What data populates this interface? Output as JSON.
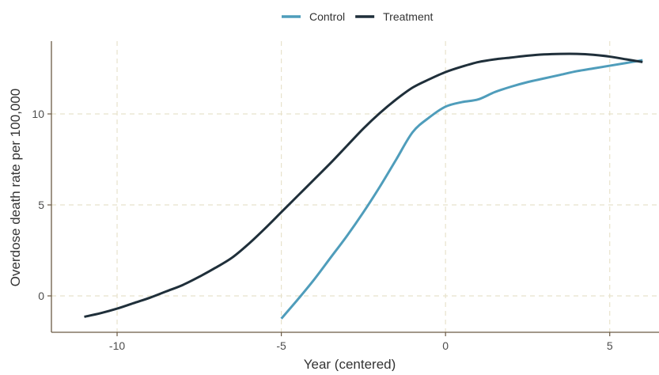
{
  "chart_data": {
    "type": "line",
    "xlabel": "Year (centered)",
    "ylabel": "Overdose death rate per 100,000",
    "xlim": [
      -12,
      6.5
    ],
    "ylim": [
      -2,
      14
    ],
    "xticks": [
      -10,
      -5,
      0,
      5
    ],
    "yticks": [
      0,
      5,
      10
    ],
    "grid": true,
    "legend_position": "top-center",
    "series": [
      {
        "name": "Control",
        "color": "#4f9dbb",
        "x": [
          -5,
          -4.5,
          -4,
          -3.5,
          -3,
          -2.5,
          -2,
          -1.5,
          -1,
          -0.5,
          0,
          0.5,
          1,
          1.5,
          2,
          2.5,
          3,
          3.5,
          4,
          4.5,
          5,
          5.5,
          6
        ],
        "y": [
          -1.25,
          -0.2,
          0.9,
          2.1,
          3.3,
          4.6,
          6.0,
          7.5,
          9.0,
          9.8,
          10.4,
          10.65,
          10.8,
          11.2,
          11.5,
          11.75,
          11.95,
          12.15,
          12.35,
          12.5,
          12.65,
          12.8,
          12.95
        ]
      },
      {
        "name": "Treatment",
        "color": "#1f2f3a",
        "x": [
          -11,
          -10.5,
          -10,
          -9.5,
          -9,
          -8.5,
          -8,
          -7.5,
          -7,
          -6.5,
          -6,
          -5.5,
          -5,
          -4.5,
          -4,
          -3.5,
          -3,
          -2.5,
          -2,
          -1.5,
          -1,
          -0.5,
          0,
          0.5,
          1,
          1.5,
          2,
          2.5,
          3,
          3.5,
          4,
          4.5,
          5,
          5.5,
          6
        ],
        "y": [
          -1.15,
          -0.95,
          -0.7,
          -0.4,
          -0.1,
          0.25,
          0.6,
          1.05,
          1.55,
          2.1,
          2.85,
          3.7,
          4.6,
          5.5,
          6.4,
          7.3,
          8.25,
          9.2,
          10.05,
          10.8,
          11.45,
          11.9,
          12.3,
          12.6,
          12.85,
          13.0,
          13.1,
          13.2,
          13.27,
          13.3,
          13.3,
          13.25,
          13.15,
          13.0,
          12.85
        ]
      }
    ]
  }
}
